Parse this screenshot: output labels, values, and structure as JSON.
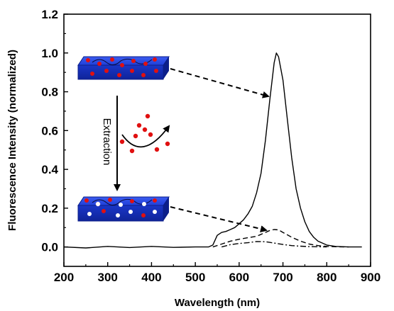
{
  "chart_data": {
    "type": "line",
    "title": "",
    "xlabel": "Wavelength (nm)",
    "ylabel": "Fluorescence Intensity (normalized)",
    "xlim": [
      200,
      900
    ],
    "ylim": [
      -0.1,
      1.2
    ],
    "xticks": [
      "200",
      "300",
      "400",
      "500",
      "600",
      "700",
      "800",
      "900"
    ],
    "yticks": [
      "0.0",
      "0.2",
      "0.4",
      "0.6",
      "0.8",
      "1.0",
      "1.2"
    ],
    "grid": false,
    "legend": "none",
    "series": [
      {
        "style": "solid",
        "x": [
          200,
          250,
          300,
          350,
          400,
          450,
          500,
          530,
          540,
          550,
          560,
          570,
          580,
          590,
          600,
          610,
          620,
          630,
          640,
          650,
          660,
          670,
          680,
          685,
          690,
          700,
          710,
          720,
          730,
          740,
          750,
          760,
          770,
          780,
          800,
          820,
          850,
          880
        ],
        "y": [
          0.0,
          -0.005,
          0.003,
          -0.003,
          0.003,
          -0.002,
          0.0,
          0.0,
          0.01,
          0.06,
          0.075,
          0.08,
          0.09,
          0.1,
          0.12,
          0.14,
          0.17,
          0.21,
          0.28,
          0.38,
          0.55,
          0.76,
          0.95,
          1.0,
          0.98,
          0.86,
          0.66,
          0.46,
          0.3,
          0.2,
          0.13,
          0.08,
          0.05,
          0.03,
          0.01,
          0.003,
          0.0,
          0.0
        ]
      },
      {
        "style": "dashed",
        "x": [
          540,
          560,
          580,
          600,
          620,
          640,
          650,
          660,
          670,
          680,
          690,
          700,
          720,
          740,
          760,
          780,
          800,
          820,
          850
        ],
        "y": [
          0.0,
          0.015,
          0.03,
          0.04,
          0.048,
          0.055,
          0.065,
          0.075,
          0.085,
          0.09,
          0.088,
          0.075,
          0.05,
          0.03,
          0.015,
          0.007,
          0.003,
          0.001,
          0.0
        ]
      },
      {
        "style": "dashdot",
        "x": [
          560,
          580,
          600,
          620,
          640,
          660,
          680,
          700,
          720,
          740,
          760,
          780,
          800
        ],
        "y": [
          0.0,
          0.012,
          0.018,
          0.022,
          0.028,
          0.027,
          0.02,
          0.013,
          0.007,
          0.004,
          0.002,
          0.001,
          0.0
        ]
      }
    ],
    "annotations": [
      {
        "text": "Extraction"
      }
    ]
  }
}
